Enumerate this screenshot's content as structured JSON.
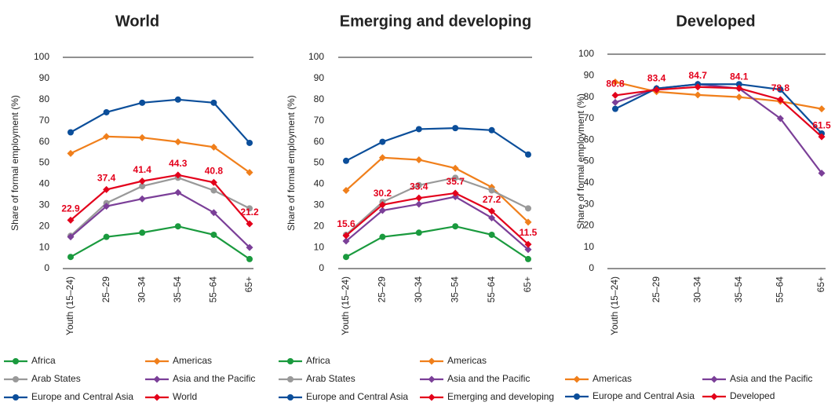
{
  "chart_data": [
    {
      "type": "line",
      "title": "World",
      "y_label": "Share of formal employment (%)",
      "categories": [
        "Youth (15–24)",
        "25–29",
        "30–34",
        "35–54",
        "55–64",
        "65+"
      ],
      "ylim": [
        0,
        100
      ],
      "yticks": [
        0,
        10,
        20,
        30,
        40,
        50,
        60,
        70,
        80,
        90,
        100
      ],
      "series": [
        {
          "name": "Africa",
          "color": "#1a9a3e",
          "marker": "circle",
          "values": [
            5.5,
            15,
            17,
            20,
            16,
            4.5
          ]
        },
        {
          "name": "Americas",
          "color": "#f07f1b",
          "marker": "diamond",
          "values": [
            54.5,
            62.5,
            62,
            60,
            57.5,
            45.5
          ]
        },
        {
          "name": "Arab States",
          "color": "#999999",
          "marker": "circle",
          "values": [
            15.5,
            31,
            39,
            43,
            37,
            28.5
          ]
        },
        {
          "name": "Asia and the Pacific",
          "color": "#7b3f98",
          "marker": "diamond",
          "values": [
            15,
            29.5,
            33,
            36,
            26.5,
            10
          ]
        },
        {
          "name": "Europe and Central Asia",
          "color": "#0b4e9a",
          "marker": "circle",
          "values": [
            64.5,
            74,
            78.5,
            80,
            78.5,
            59.5
          ]
        },
        {
          "name": "World",
          "color": "#e3001b",
          "marker": "diamond",
          "data_labels": true,
          "values": [
            22.9,
            37.4,
            41.4,
            44.3,
            40.8,
            21.2
          ]
        }
      ]
    },
    {
      "type": "line",
      "title": "Emerging and developing",
      "y_label": "Share of formal employment (%)",
      "categories": [
        "Youth (15–24)",
        "25–29",
        "30–34",
        "35–54",
        "55–64",
        "65+"
      ],
      "ylim": [
        0,
        100
      ],
      "yticks": [
        0,
        10,
        20,
        30,
        40,
        50,
        60,
        70,
        80,
        90,
        100
      ],
      "series": [
        {
          "name": "Africa",
          "color": "#1a9a3e",
          "marker": "circle",
          "values": [
            5.5,
            15,
            17,
            20,
            16,
            4.5
          ]
        },
        {
          "name": "Americas",
          "color": "#f07f1b",
          "marker": "diamond",
          "values": [
            37,
            52.5,
            51.5,
            47.5,
            38.5,
            22
          ]
        },
        {
          "name": "Arab States",
          "color": "#999999",
          "marker": "circle",
          "values": [
            16,
            31.5,
            39.5,
            43,
            37,
            28.5
          ]
        },
        {
          "name": "Asia and the Pacific",
          "color": "#7b3f98",
          "marker": "diamond",
          "values": [
            13,
            27.5,
            30.5,
            34,
            24,
            9
          ]
        },
        {
          "name": "Europe and Central Asia",
          "color": "#0b4e9a",
          "marker": "circle",
          "values": [
            51,
            60,
            66,
            66.5,
            65.5,
            54
          ]
        },
        {
          "name": "Emerging and developing",
          "color": "#e3001b",
          "marker": "diamond",
          "data_labels": true,
          "values": [
            15.6,
            30.2,
            33.4,
            35.7,
            27.2,
            11.5
          ]
        }
      ]
    },
    {
      "type": "line",
      "title": "Developed",
      "y_label": "Share of formal employment (%)",
      "categories": [
        "Youth (15–24)",
        "25–29",
        "30–34",
        "35–54",
        "55–64",
        "65+"
      ],
      "ylim": [
        0,
        100
      ],
      "yticks": [
        0,
        10,
        20,
        30,
        40,
        50,
        60,
        70,
        80,
        90,
        100
      ],
      "series": [
        {
          "name": "Americas",
          "color": "#f07f1b",
          "marker": "diamond",
          "values": [
            87,
            82.5,
            81,
            80,
            78,
            74.5
          ]
        },
        {
          "name": "Asia and the Pacific",
          "color": "#7b3f98",
          "marker": "diamond",
          "values": [
            77.5,
            84,
            86,
            84,
            70,
            44.5
          ]
        },
        {
          "name": "Europe and Central Asia",
          "color": "#0b4e9a",
          "marker": "circle",
          "values": [
            74.5,
            84,
            86,
            86,
            83.5,
            63
          ]
        },
        {
          "name": "Developed",
          "color": "#e3001b",
          "marker": "diamond",
          "data_labels": true,
          "values": [
            80.8,
            83.4,
            84.7,
            84.1,
            78.8,
            61.5
          ]
        }
      ]
    }
  ]
}
